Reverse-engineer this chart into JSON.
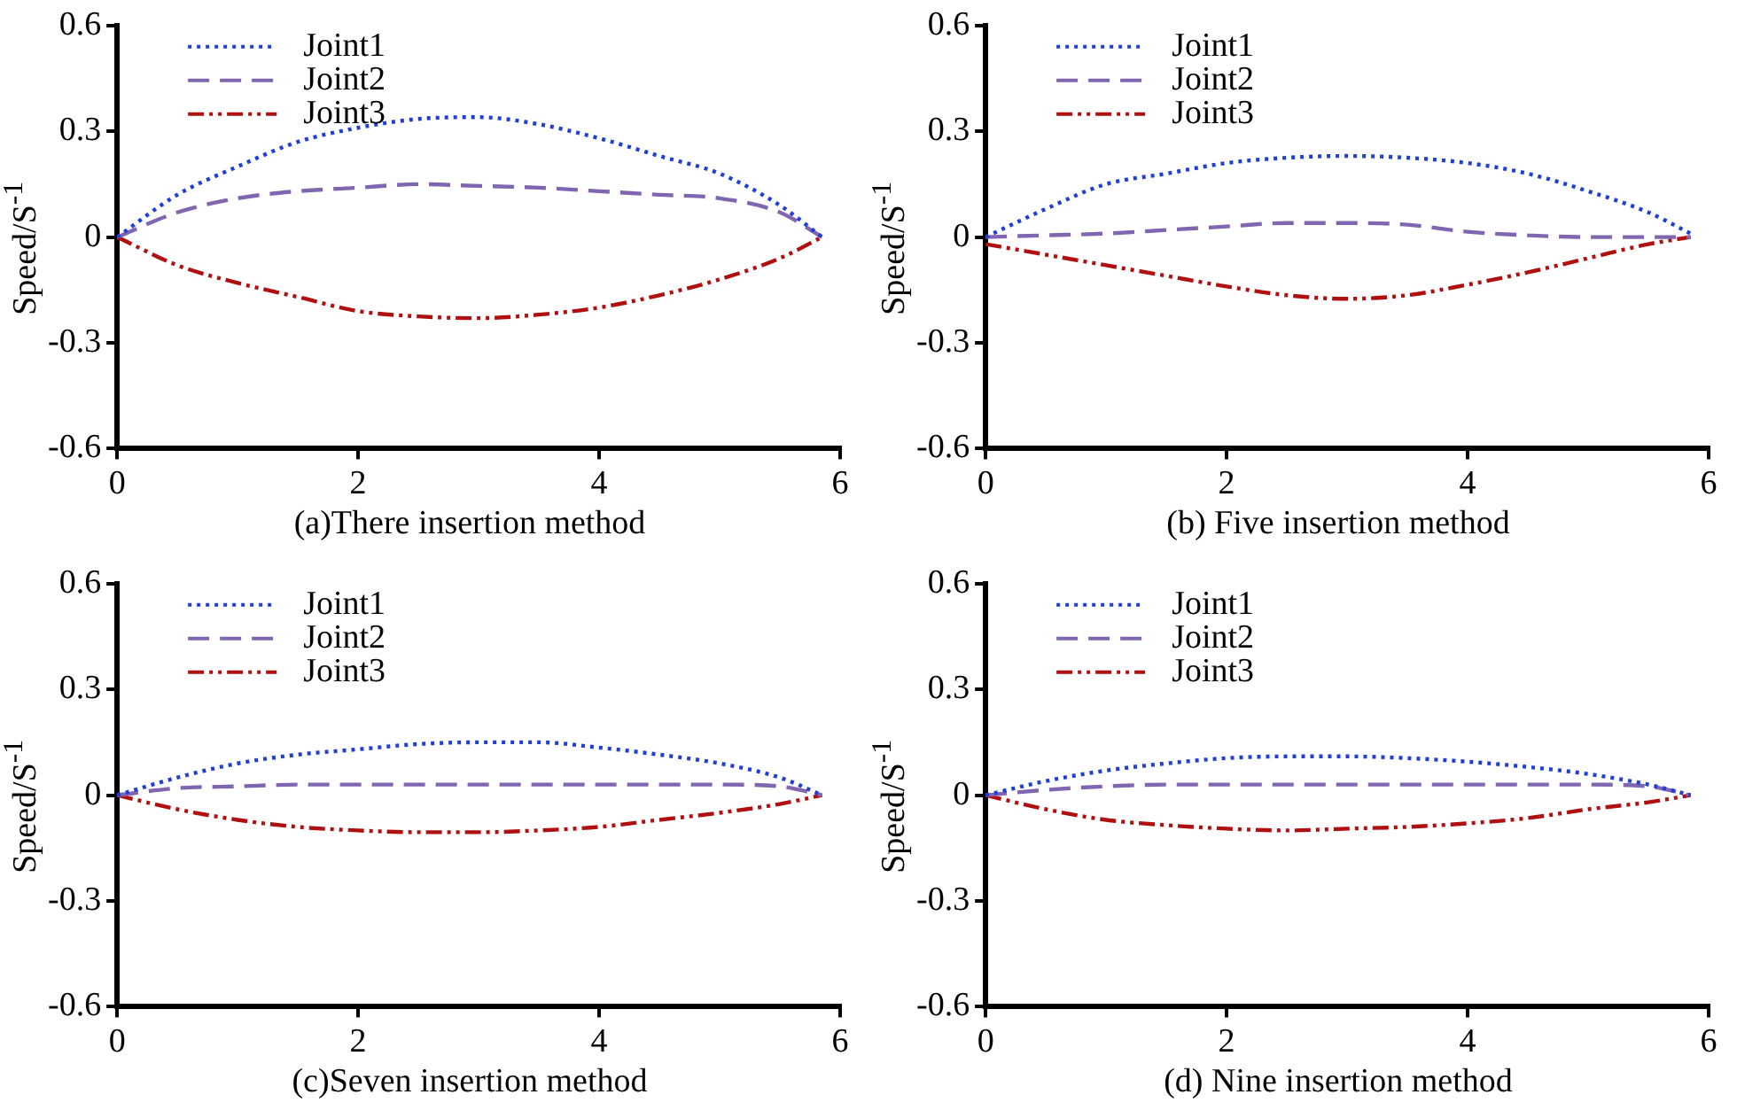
{
  "chart_data": [
    {
      "type": "line",
      "xlabel": "(a)There insertion method",
      "ylabel": "Speed/S$^{-1}$",
      "xlim": [
        0,
        6
      ],
      "xticks": [
        0,
        2,
        4,
        6
      ],
      "ylim": [
        -0.6,
        0.6
      ],
      "yticks": [
        0.6,
        0.3,
        0,
        -0.3,
        -0.6
      ],
      "grid": false,
      "legend": "top left",
      "marker": "none",
      "x": [
        0,
        0.5,
        1,
        1.5,
        2,
        2.5,
        3,
        3.5,
        4,
        4.5,
        5,
        5.5,
        5.85
      ],
      "series": [
        {
          "name": "Joint1",
          "color": "#1f3fd6",
          "line_style": "dotted",
          "values": [
            0,
            0.12,
            0.2,
            0.27,
            0.31,
            0.335,
            0.34,
            0.32,
            0.28,
            0.23,
            0.18,
            0.09,
            0
          ]
        },
        {
          "name": "Joint2",
          "color": "#8066b0",
          "line_style": "dashed",
          "values": [
            0,
            0.07,
            0.11,
            0.13,
            0.14,
            0.15,
            0.145,
            0.14,
            0.13,
            0.12,
            0.11,
            0.07,
            0
          ]
        },
        {
          "name": "Joint3",
          "color": "#b01010",
          "line_style": "dashdot",
          "values": [
            0,
            -0.08,
            -0.13,
            -0.17,
            -0.21,
            -0.225,
            -0.23,
            -0.22,
            -0.2,
            -0.165,
            -0.12,
            -0.06,
            0
          ]
        }
      ]
    },
    {
      "type": "line",
      "xlabel": "(b) Five insertion method",
      "ylabel": "Speed/S$^{-1}$",
      "xlim": [
        0,
        6
      ],
      "xticks": [
        0,
        2,
        4,
        6
      ],
      "ylim": [
        -0.6,
        0.6
      ],
      "yticks": [
        0.6,
        0.3,
        0,
        -0.3,
        -0.6
      ],
      "grid": false,
      "legend": "top left",
      "marker": "none",
      "x": [
        0,
        0.5,
        1,
        1.5,
        2,
        2.5,
        3,
        3.5,
        4,
        4.5,
        5,
        5.5,
        5.85
      ],
      "series": [
        {
          "name": "Joint1",
          "color": "#1f3fd6",
          "line_style": "dotted",
          "values": [
            0,
            0.08,
            0.15,
            0.18,
            0.21,
            0.225,
            0.23,
            0.225,
            0.21,
            0.18,
            0.13,
            0.07,
            0.01
          ]
        },
        {
          "name": "Joint2",
          "color": "#8066b0",
          "line_style": "dashed",
          "values": [
            0,
            0.005,
            0.01,
            0.02,
            0.03,
            0.04,
            0.04,
            0.035,
            0.015,
            0.005,
            0,
            0,
            0
          ]
        },
        {
          "name": "Joint3",
          "color": "#b01010",
          "line_style": "dashdot",
          "values": [
            -0.02,
            -0.05,
            -0.08,
            -0.11,
            -0.14,
            -0.165,
            -0.175,
            -0.165,
            -0.135,
            -0.1,
            -0.06,
            -0.02,
            0
          ]
        }
      ]
    },
    {
      "type": "line",
      "xlabel": "(c)Seven insertion method",
      "ylabel": "Speed/S$^{-1}$",
      "xlim": [
        0,
        6
      ],
      "xticks": [
        0,
        2,
        4,
        6
      ],
      "ylim": [
        -0.6,
        0.6
      ],
      "yticks": [
        0.6,
        0.3,
        0,
        -0.3,
        -0.6
      ],
      "grid": false,
      "legend": "top left",
      "marker": "none",
      "x": [
        0,
        0.5,
        1,
        1.5,
        2,
        2.5,
        3,
        3.5,
        4,
        4.5,
        5,
        5.5,
        5.85
      ],
      "series": [
        {
          "name": "Joint1",
          "color": "#1f3fd6",
          "line_style": "dotted",
          "values": [
            0,
            0.05,
            0.09,
            0.115,
            0.13,
            0.145,
            0.15,
            0.15,
            0.135,
            0.115,
            0.09,
            0.05,
            0
          ]
        },
        {
          "name": "Joint2",
          "color": "#8066b0",
          "line_style": "dashed",
          "values": [
            0,
            0.02,
            0.025,
            0.03,
            0.03,
            0.03,
            0.03,
            0.03,
            0.03,
            0.03,
            0.03,
            0.025,
            0
          ]
        },
        {
          "name": "Joint3",
          "color": "#b01010",
          "line_style": "dashdot",
          "values": [
            0,
            -0.04,
            -0.07,
            -0.09,
            -0.1,
            -0.105,
            -0.105,
            -0.1,
            -0.09,
            -0.07,
            -0.05,
            -0.025,
            0
          ]
        }
      ]
    },
    {
      "type": "line",
      "xlabel": "(d) Nine insertion method",
      "ylabel": "Speed/S$^{-1}$",
      "xlim": [
        0,
        6
      ],
      "xticks": [
        0,
        2,
        4,
        6
      ],
      "ylim": [
        -0.6,
        0.6
      ],
      "yticks": [
        0.6,
        0.3,
        0,
        -0.3,
        -0.6
      ],
      "grid": false,
      "legend": "top left",
      "marker": "none",
      "x": [
        0,
        0.5,
        1,
        1.5,
        2,
        2.5,
        3,
        3.5,
        4,
        4.5,
        5,
        5.5,
        5.85
      ],
      "series": [
        {
          "name": "Joint1",
          "color": "#1f3fd6",
          "line_style": "dotted",
          "values": [
            0,
            0.04,
            0.07,
            0.09,
            0.105,
            0.11,
            0.11,
            0.105,
            0.095,
            0.08,
            0.06,
            0.03,
            0
          ]
        },
        {
          "name": "Joint2",
          "color": "#8066b0",
          "line_style": "dashed",
          "values": [
            0,
            0.015,
            0.025,
            0.03,
            0.03,
            0.03,
            0.03,
            0.03,
            0.03,
            0.03,
            0.03,
            0.025,
            0
          ]
        },
        {
          "name": "Joint3",
          "color": "#b01010",
          "line_style": "dashdot",
          "values": [
            0,
            -0.04,
            -0.07,
            -0.085,
            -0.095,
            -0.1,
            -0.095,
            -0.09,
            -0.08,
            -0.065,
            -0.04,
            -0.02,
            0
          ]
        }
      ]
    }
  ]
}
